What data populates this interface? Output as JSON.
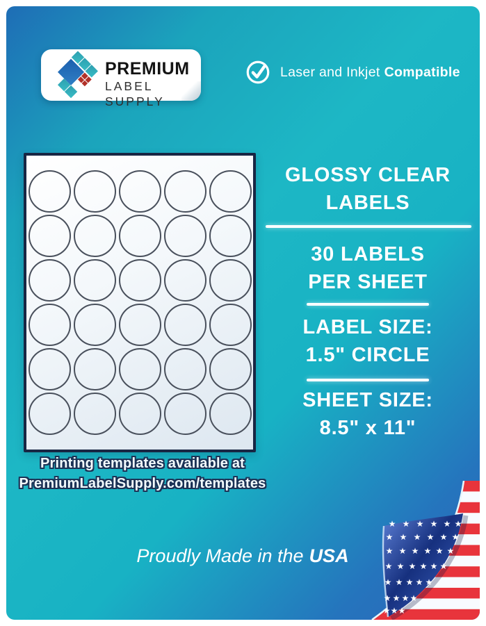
{
  "brand": {
    "name_line1": "PREMIUM",
    "name_line2": "LABEL SUPPLY"
  },
  "compatibility": {
    "prefix": "Laser and Inkjet",
    "bold": "Compatible"
  },
  "sheet": {
    "rows": 6,
    "cols": 5,
    "label_shape": "circle"
  },
  "templates_note": {
    "line1": "Printing templates available at",
    "line2": "PremiumLabelSupply.com/templates"
  },
  "specs": [
    {
      "line1": "GLOSSY CLEAR",
      "line2": "LABELS"
    },
    {
      "line1": "30 LABELS",
      "line2": "PER SHEET"
    },
    {
      "line1": "LABEL SIZE:",
      "line2": "1.5\" CIRCLE"
    },
    {
      "line1": "SHEET SIZE:",
      "line2": "8.5\" x 11\""
    }
  ],
  "footer": {
    "prefix": "Proudly Made in the",
    "bold": "USA"
  },
  "colors": {
    "teal": "#1db7c5",
    "corner_blue": "#1e6db6",
    "bottom_right_blue": "#2e66b8",
    "flag_red": "#e8343c",
    "flag_union_blue": "#16307e",
    "logo_blue": "#1f66b2",
    "logo_teal": "#2fa5b2",
    "logo_red": "#b23129",
    "sheet_border_navy": "#182643"
  }
}
